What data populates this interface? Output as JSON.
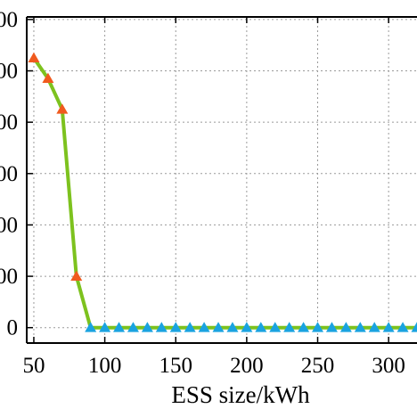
{
  "chart_data": {
    "type": "line",
    "title": "",
    "xlabel": "ESS size/kWh",
    "ylabel": "",
    "x_tick_labels": [
      "50",
      "100",
      "150",
      "200",
      "250",
      "300"
    ],
    "y_tick_labels": [
      "0",
      "00",
      "00",
      "00",
      "00",
      "00",
      "00"
    ],
    "xlim": [
      45,
      320
    ],
    "ylim": [
      -0.3,
      6.05
    ],
    "grid": true,
    "x": [
      50,
      60,
      70,
      80,
      90,
      100,
      110,
      120,
      130,
      140,
      150,
      160,
      170,
      180,
      190,
      200,
      210,
      220,
      230,
      240,
      250,
      260,
      270,
      280,
      290,
      300,
      310,
      320
    ],
    "series": [
      {
        "values": [
          5.25,
          4.85,
          4.25,
          1.0,
          0.0,
          0.0,
          0.0,
          0.0,
          0.0,
          0.0,
          0.0,
          0.0,
          0.0,
          0.0,
          0.0,
          0.0,
          0.0,
          0.0,
          0.0,
          0.0,
          0.0,
          0.0,
          0.0,
          0.0,
          0.0,
          0.0,
          0.0,
          0.0
        ],
        "line_color": "#7dc21e"
      }
    ],
    "marker_colors": {
      "positive": "#f05a1e",
      "zero": "#1aa3e0"
    },
    "zero_line_color": "#f0c814"
  }
}
